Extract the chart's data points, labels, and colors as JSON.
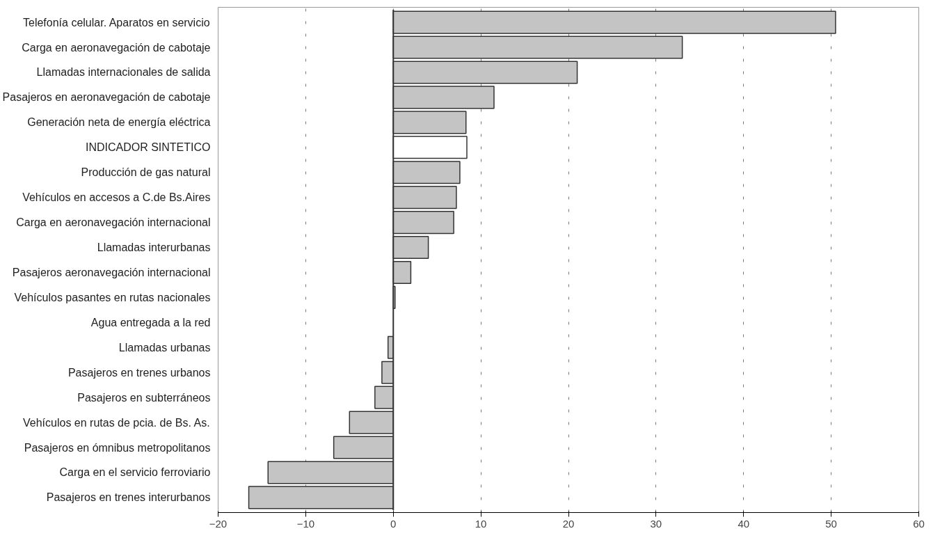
{
  "chart_data": {
    "type": "bar",
    "orientation": "horizontal",
    "categories": [
      "Telefonía celular. Aparatos en servicio",
      "Carga en aeronavegación de cabotaje",
      "Llamadas internacionales de salida",
      "Pasajeros en aeronavegación de cabotaje",
      "Generación neta de energía eléctrica",
      "INDICADOR SINTETICO",
      "Producción de gas natural",
      "Vehículos en accesos a C.de Bs.Aires",
      "Carga en aeronavegación internacional",
      "Llamadas interurbanas",
      "Pasajeros aeronavegación internacional",
      "Vehículos pasantes en rutas nacionales",
      "Agua entregada a la red",
      "Llamadas urbanas",
      "Pasajeros en trenes urbanos",
      "Pasajeros en subterráneos",
      "Vehículos en rutas de pcia. de Bs. As.",
      "Pasajeros en ómnibus metropolitanos",
      "Carga en el servicio ferroviario",
      "Pasajeros en trenes interurbanos"
    ],
    "values": [
      50.5,
      33,
      21,
      11.5,
      8.3,
      8.4,
      7.6,
      7.2,
      6.9,
      4,
      2,
      0.2,
      0,
      -0.6,
      -1.3,
      -2.1,
      -5,
      -6.8,
      -14.3,
      -16.5
    ],
    "colors": [
      "#c4c4c4",
      "#c4c4c4",
      "#c4c4c4",
      "#c4c4c4",
      "#c4c4c4",
      "#ffffff",
      "#c4c4c4",
      "#c4c4c4",
      "#c4c4c4",
      "#c4c4c4",
      "#c4c4c4",
      "#c4c4c4",
      "#c4c4c4",
      "#c4c4c4",
      "#c4c4c4",
      "#c4c4c4",
      "#c4c4c4",
      "#c4c4c4",
      "#c4c4c4",
      "#c4c4c4"
    ],
    "xlim": [
      -20,
      60
    ],
    "xticks": [
      -20,
      -10,
      0,
      10,
      20,
      30,
      40,
      50,
      60
    ],
    "grid": "x"
  }
}
